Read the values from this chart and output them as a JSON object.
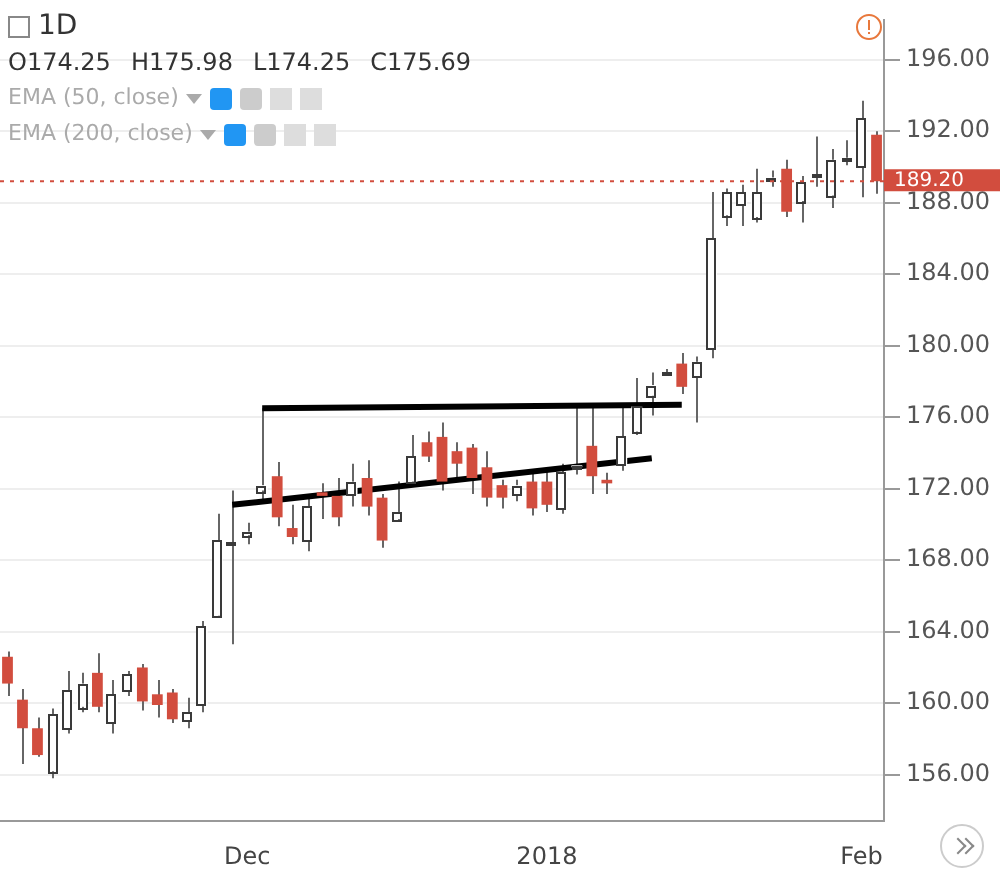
{
  "chart_data": {
    "type": "candlestick",
    "title": "1D",
    "annotations": [
      "O174.25",
      "H175.98",
      "L174.25",
      "C175.69",
      "EMA (50, close)",
      "EMA (200, close)"
    ],
    "categories": [
      null,
      null,
      null,
      null,
      null,
      null,
      null,
      null,
      null,
      null,
      null,
      null,
      null,
      null,
      null,
      null,
      "Dec",
      null,
      null,
      null,
      null,
      null,
      null,
      null,
      null,
      null,
      null,
      null,
      null,
      null,
      null,
      null,
      null,
      null,
      null,
      null,
      "2018",
      null,
      null,
      null,
      null,
      null,
      null,
      null,
      null,
      null,
      null,
      null,
      null,
      null,
      null,
      null,
      null,
      null,
      null,
      null,
      null,
      "Feb",
      null
    ],
    "ohlc": [
      [
        162.6,
        162.9,
        160.4,
        161.1
      ],
      [
        160.2,
        160.8,
        156.6,
        158.6
      ],
      [
        158.6,
        159.2,
        157.0,
        157.1
      ],
      [
        156.2,
        159.7,
        155.8,
        159.4
      ],
      [
        158.6,
        161.8,
        158.3,
        160.7
      ],
      [
        159.8,
        161.7,
        159.5,
        161.1
      ],
      [
        161.7,
        162.8,
        159.5,
        159.8
      ],
      [
        158.9,
        161.3,
        158.3,
        160.5
      ],
      [
        160.7,
        161.8,
        160.4,
        161.6
      ],
      [
        162.0,
        162.2,
        159.6,
        160.1
      ],
      [
        160.5,
        161.3,
        159.2,
        159.9
      ],
      [
        160.6,
        160.8,
        158.9,
        159.1
      ],
      [
        159.0,
        160.3,
        158.6,
        159.5
      ],
      [
        159.9,
        164.6,
        159.5,
        164.3
      ],
      [
        164.9,
        170.6,
        164.9,
        169.1
      ],
      [
        168.9,
        171.9,
        163.3,
        169.0
      ],
      [
        169.4,
        170.1,
        168.9,
        169.6
      ],
      [
        171.9,
        176.5,
        171.4,
        172.2
      ],
      [
        172.7,
        173.5,
        169.9,
        170.4
      ],
      [
        169.8,
        171.1,
        168.9,
        169.3
      ],
      [
        169.1,
        171.6,
        168.5,
        171.0
      ],
      [
        171.8,
        172.3,
        170.3,
        171.6
      ],
      [
        171.6,
        172.6,
        169.9,
        170.4
      ],
      [
        171.7,
        173.4,
        171.0,
        172.4
      ],
      [
        172.6,
        173.6,
        170.5,
        171.0
      ],
      [
        171.5,
        171.7,
        168.7,
        169.1
      ],
      [
        170.3,
        172.4,
        170.2,
        170.7
      ],
      [
        172.4,
        175.0,
        172.3,
        173.8
      ],
      [
        174.6,
        175.2,
        173.5,
        173.8
      ],
      [
        174.9,
        175.7,
        171.9,
        172.4
      ],
      [
        174.1,
        174.6,
        172.6,
        173.4
      ],
      [
        174.3,
        174.5,
        171.7,
        172.6
      ],
      [
        173.2,
        174.1,
        171.0,
        171.5
      ],
      [
        172.2,
        172.5,
        170.9,
        171.5
      ],
      [
        171.7,
        172.5,
        171.3,
        172.2
      ],
      [
        172.4,
        173.0,
        170.5,
        170.9
      ],
      [
        172.4,
        173.0,
        170.7,
        171.1
      ],
      [
        170.9,
        173.4,
        170.6,
        172.9
      ],
      [
        173.2,
        176.7,
        172.8,
        173.3
      ],
      [
        174.4,
        176.6,
        171.7,
        172.7
      ],
      [
        172.5,
        172.9,
        171.7,
        172.3
      ],
      [
        173.3,
        176.6,
        173.0,
        174.9
      ],
      [
        175.2,
        178.2,
        175.0,
        176.6
      ],
      [
        177.2,
        178.5,
        176.1,
        177.8
      ],
      [
        178.4,
        178.7,
        178.3,
        178.5
      ],
      [
        179.0,
        179.6,
        177.3,
        177.7
      ],
      [
        178.3,
        179.4,
        175.7,
        179.1
      ],
      [
        179.8,
        188.6,
        179.3,
        186.0
      ],
      [
        187.3,
        188.8,
        186.7,
        188.6
      ],
      [
        187.9,
        189.0,
        186.7,
        188.6
      ],
      [
        187.2,
        189.9,
        186.9,
        188.6
      ],
      [
        189.3,
        189.8,
        188.9,
        189.4
      ],
      [
        189.9,
        190.4,
        187.2,
        187.5
      ],
      [
        188.1,
        189.5,
        186.9,
        189.2
      ],
      [
        189.5,
        191.7,
        188.9,
        189.6
      ],
      [
        188.4,
        191.0,
        187.7,
        190.4
      ],
      [
        190.4,
        191.5,
        190.1,
        190.5
      ],
      [
        190.0,
        193.7,
        188.3,
        192.7
      ],
      [
        191.8,
        192.0,
        188.5,
        189.2
      ]
    ],
    "colors": [
      "#d24d3e",
      "#d24d3e",
      "#d24d3e",
      "#ffffff",
      "#ffffff",
      "#ffffff",
      "#d24d3e",
      "#ffffff",
      "#ffffff",
      "#d24d3e",
      "#d24d3e",
      "#d24d3e",
      "#ffffff",
      "#ffffff",
      "#ffffff",
      "#ffffff",
      "#ffffff",
      "#ffffff",
      "#d24d3e",
      "#d24d3e",
      "#ffffff",
      "#d24d3e",
      "#d24d3e",
      "#ffffff",
      "#d24d3e",
      "#d24d3e",
      "#ffffff",
      "#ffffff",
      "#d24d3e",
      "#d24d3e",
      "#d24d3e",
      "#d24d3e",
      "#d24d3e",
      "#d24d3e",
      "#ffffff",
      "#d24d3e",
      "#d24d3e",
      "#ffffff",
      "#ffffff",
      "#d24d3e",
      "#d24d3e",
      "#ffffff",
      "#ffffff",
      "#ffffff",
      "#ffffff",
      "#d24d3e",
      "#ffffff",
      "#ffffff",
      "#ffffff",
      "#ffffff",
      "#ffffff",
      "#ffffff",
      "#d24d3e",
      "#ffffff",
      "#ffffff",
      "#ffffff",
      "#ffffff",
      "#ffffff",
      "#d24d3e"
    ],
    "series": [
      {
        "type": "line",
        "color": "#000000",
        "values": [
          null,
          null,
          null,
          null,
          null,
          null,
          null,
          null,
          null,
          null,
          null,
          null,
          null,
          null,
          null,
          null,
          null,
          176.5,
          null,
          null,
          null,
          null,
          null,
          null,
          null,
          null,
          null,
          null,
          null,
          null,
          null,
          null,
          null,
          null,
          null,
          null,
          null,
          null,
          null,
          null,
          null,
          null,
          null,
          null,
          null,
          176.7,
          null,
          null,
          null,
          null,
          null,
          null,
          null,
          null,
          null,
          null,
          null,
          null,
          null
        ]
      },
      {
        "type": "line",
        "color": "#000000",
        "values": [
          null,
          null,
          null,
          null,
          null,
          null,
          null,
          null,
          null,
          null,
          null,
          null,
          null,
          null,
          null,
          171.1,
          null,
          null,
          null,
          null,
          null,
          null,
          null,
          null,
          null,
          null,
          null,
          null,
          null,
          null,
          null,
          null,
          null,
          null,
          null,
          null,
          null,
          null,
          null,
          null,
          null,
          null,
          null,
          173.7,
          null,
          null,
          null,
          null,
          null,
          null,
          null,
          null,
          null,
          null,
          null,
          null,
          null,
          null,
          null
        ]
      }
    ],
    "ylim": [
      153.4,
      198.2
    ],
    "yticks": [
      {
        "value": 156,
        "label": "156.00"
      },
      {
        "value": 160,
        "label": "160.00"
      },
      {
        "value": 164,
        "label": "164.00"
      },
      {
        "value": 168,
        "label": "168.00"
      },
      {
        "value": 172,
        "label": "172.00"
      },
      {
        "value": 176,
        "label": "176.00"
      },
      {
        "value": 180,
        "label": "180.00"
      },
      {
        "value": 184,
        "label": "184.00"
      },
      {
        "value": 188,
        "label": "188.00"
      },
      {
        "value": 192,
        "label": "192.00"
      },
      {
        "value": 196,
        "label": "196.00"
      }
    ],
    "ref_lines": [
      {
        "axis": "y",
        "value": 189.2,
        "label": "189.20",
        "color": "#d24d3e",
        "line_style": "dotted"
      }
    ],
    "grid": "y",
    "legend": false
  }
}
